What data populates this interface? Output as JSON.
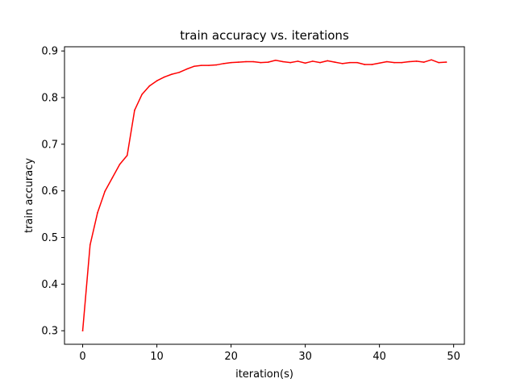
{
  "chart_data": {
    "type": "line",
    "title": "train accuracy vs. iterations",
    "xlabel": "iteration(s)",
    "ylabel": "train accuracy",
    "xlim": [
      -2.45,
      51.45
    ],
    "ylim": [
      0.271,
      0.909
    ],
    "xticks": [
      0,
      10,
      20,
      30,
      40,
      50
    ],
    "yticks": [
      0.3,
      0.4,
      0.5,
      0.6,
      0.7,
      0.8,
      0.9
    ],
    "grid": false,
    "legend": "none",
    "series": [
      {
        "color": "#ff0000",
        "x": [
          0,
          1,
          2,
          3,
          4,
          5,
          6,
          7,
          8,
          9,
          10,
          11,
          12,
          13,
          14,
          15,
          16,
          17,
          18,
          19,
          20,
          21,
          22,
          23,
          24,
          25,
          26,
          27,
          28,
          29,
          30,
          31,
          32,
          33,
          34,
          35,
          36,
          37,
          38,
          39,
          40,
          41,
          42,
          43,
          44,
          45,
          46,
          47,
          48,
          49
        ],
        "y": [
          0.3,
          0.484,
          0.553,
          0.599,
          0.628,
          0.657,
          0.676,
          0.773,
          0.807,
          0.825,
          0.836,
          0.844,
          0.85,
          0.854,
          0.861,
          0.867,
          0.869,
          0.869,
          0.87,
          0.873,
          0.875,
          0.876,
          0.877,
          0.877,
          0.875,
          0.876,
          0.88,
          0.877,
          0.875,
          0.878,
          0.874,
          0.878,
          0.875,
          0.879,
          0.876,
          0.873,
          0.875,
          0.875,
          0.871,
          0.871,
          0.874,
          0.877,
          0.875,
          0.875,
          0.877,
          0.878,
          0.876,
          0.881,
          0.875,
          0.876
        ]
      }
    ]
  }
}
